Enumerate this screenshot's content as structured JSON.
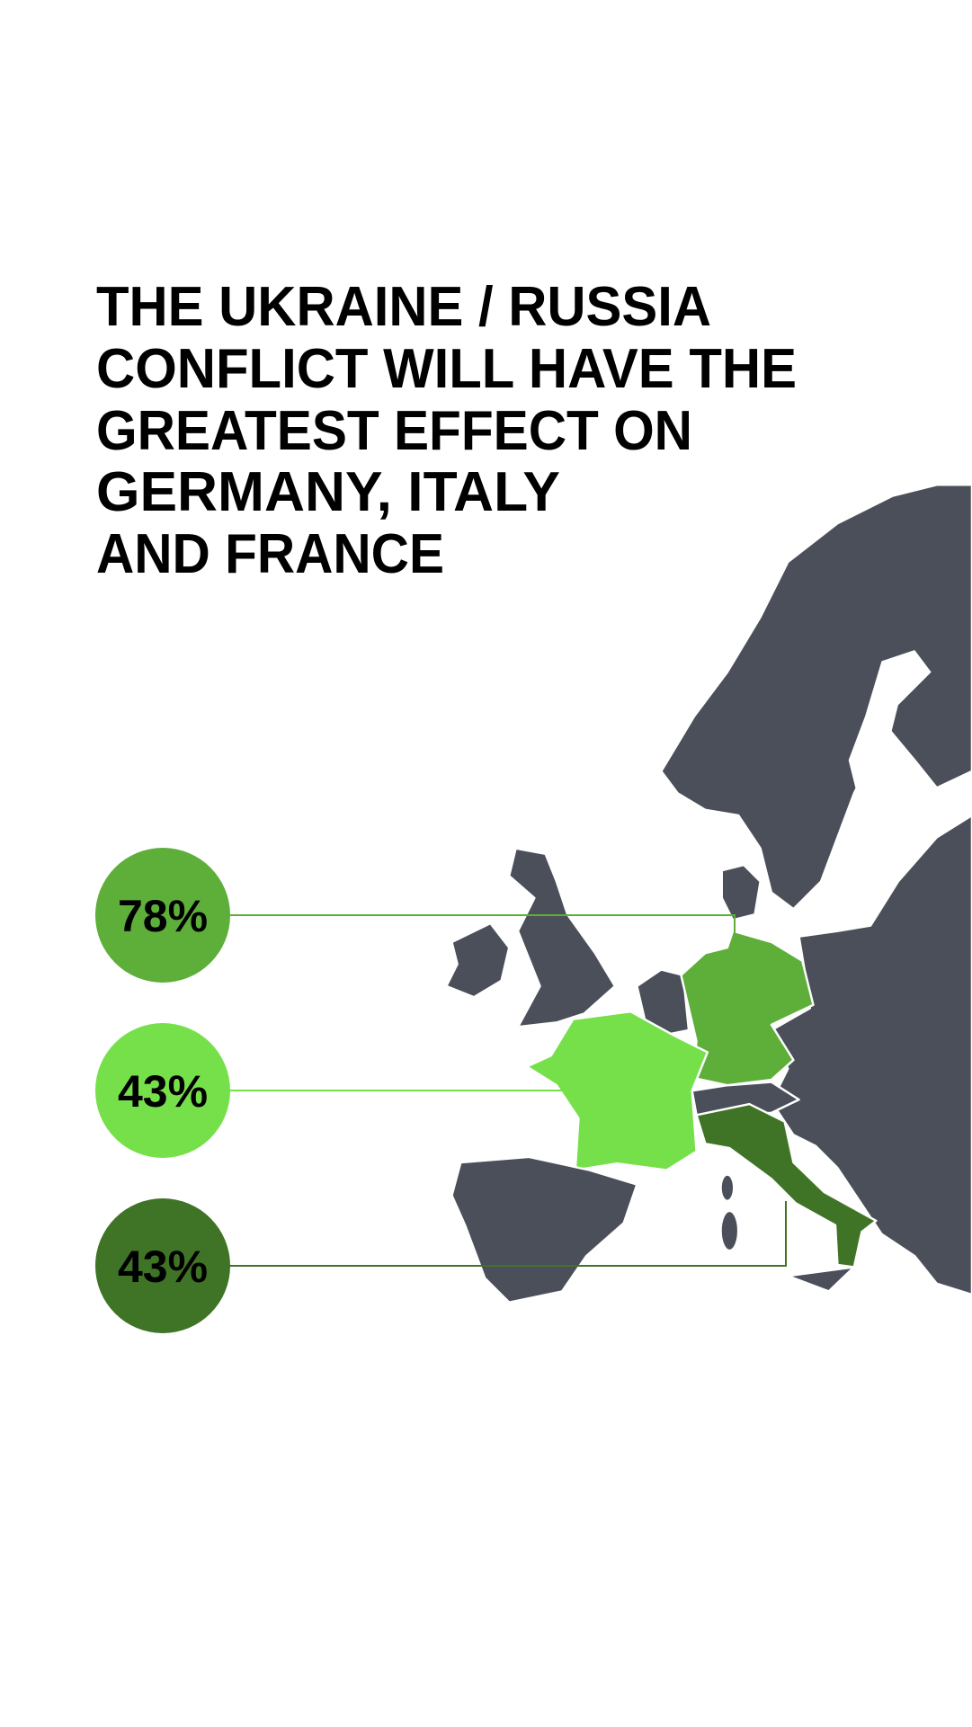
{
  "title": {
    "lines": [
      "THE UKRAINE / RUSSIA",
      "CONFLICT WILL HAVE THE",
      "GREATEST EFFECT ON",
      "GERMANY, ITALY",
      "AND FRANCE"
    ]
  },
  "stats": [
    {
      "label": "78%",
      "color": "#5daf3a"
    },
    {
      "label": "43%",
      "color": "#76e04a"
    },
    {
      "label": "43%",
      "color": "#3f7426"
    }
  ]
}
